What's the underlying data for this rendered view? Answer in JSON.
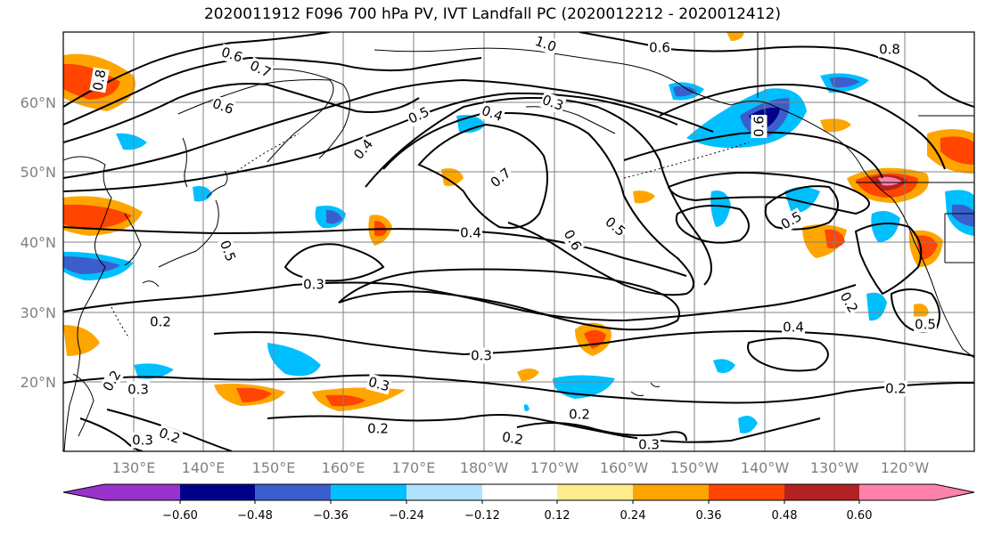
{
  "title": "2020011912 F096 700 hPa PV, IVT Landfall PC (2020012212 - 2020012412)",
  "lat_labels": [
    "60°N",
    "50°N",
    "40°N",
    "30°N",
    "20°N"
  ],
  "lon_labels": [
    "130°E",
    "140°E",
    "150°E",
    "160°E",
    "170°E",
    "180°W",
    "170°W",
    "160°W",
    "150°W",
    "140°W",
    "130°W",
    "120°W"
  ],
  "contour_labels": [
    "0.6",
    "0.7",
    "1.0",
    "0.6",
    "0.8",
    "0.6",
    "0.8",
    "0.3",
    "0.5",
    "0.4",
    "0.4",
    "0.7",
    "0.4",
    "0.6",
    "0.5",
    "0.5",
    "0.3",
    "0.2",
    "0.3",
    "0.4",
    "0.5",
    "0.3",
    "0.3",
    "0.2",
    "0.2",
    "0.2",
    "0.2",
    "0.3",
    "0.3",
    "0.2",
    "0.2",
    "0.6",
    "0.5",
    "0.2"
  ],
  "colorbar": {
    "tick_labels": [
      "−0.60",
      "−0.48",
      "−0.36",
      "−0.24",
      "−0.12",
      "0.12",
      "0.24",
      "0.36",
      "0.48",
      "0.60"
    ],
    "colors": [
      "#9932cc",
      "#00008b",
      "#3a5fcd",
      "#00bfff",
      "#b0e2ff",
      "#ffffff",
      "#ffec8b",
      "#ffa500",
      "#ff4500",
      "#b22222",
      "#ff82ab"
    ]
  },
  "colors": {
    "grid": "#808080",
    "contour": "#000000",
    "coast": "#000000"
  }
}
